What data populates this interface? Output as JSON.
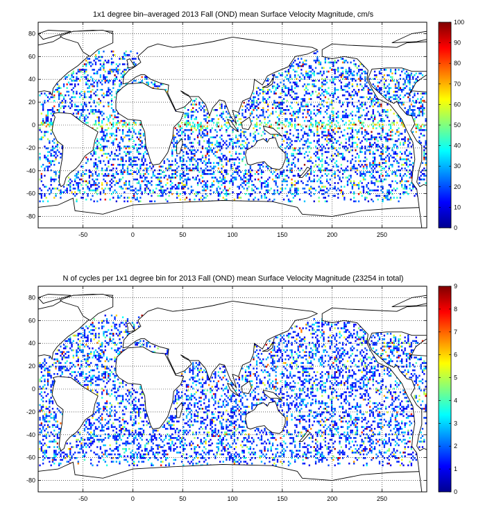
{
  "chart_data": [
    {
      "type": "heatmap",
      "title": "1x1 degree bin–averaged 2013 Fall (OND) mean Surface Velocity Magnitude, cm/s",
      "xlim": [
        -95,
        295
      ],
      "ylim": [
        -90,
        90
      ],
      "xticks": [
        -50,
        0,
        50,
        100,
        150,
        200,
        250
      ],
      "xtick_labels": [
        "-50",
        "0",
        "50",
        "100",
        "150",
        "200",
        "250"
      ],
      "yticks": [
        80,
        60,
        40,
        20,
        0,
        -20,
        -40,
        -60,
        -80
      ],
      "ytick_labels": [
        "80",
        "60",
        "40",
        "20",
        "0",
        "-20",
        "-40",
        "-60",
        "-80"
      ],
      "grid": true,
      "colorbar": {
        "range": [
          0,
          100
        ],
        "ticks": [
          0,
          10,
          20,
          30,
          40,
          50,
          60,
          70,
          80,
          90,
          100
        ],
        "tick_labels": [
          "0",
          "10",
          "20",
          "30",
          "40",
          "50",
          "60",
          "70",
          "80",
          "90",
          "100"
        ],
        "colormap": "jet"
      }
    },
    {
      "type": "heatmap",
      "title": "N of cycles per 1x1 degree bin for 2013 Fall (OND) mean Surface Velocity Magnitude (23254 in total)",
      "xlim": [
        -95,
        295
      ],
      "ylim": [
        -90,
        90
      ],
      "xticks": [
        -50,
        0,
        50,
        100,
        150,
        200,
        250
      ],
      "xtick_labels": [
        "-50",
        "0",
        "50",
        "100",
        "150",
        "200",
        "250"
      ],
      "yticks": [
        80,
        60,
        40,
        20,
        0,
        -20,
        -40,
        -60,
        -80
      ],
      "ytick_labels": [
        "80",
        "60",
        "40",
        "20",
        "0",
        "-20",
        "-40",
        "-60",
        "-80"
      ],
      "grid": true,
      "colorbar": {
        "range": [
          0,
          9
        ],
        "ticks": [
          0,
          1,
          2,
          3,
          4,
          5,
          6,
          7,
          8,
          9
        ],
        "tick_labels": [
          "0",
          "1",
          "2",
          "3",
          "4",
          "5",
          "6",
          "7",
          "8",
          "9"
        ],
        "colormap": "jet"
      }
    }
  ]
}
